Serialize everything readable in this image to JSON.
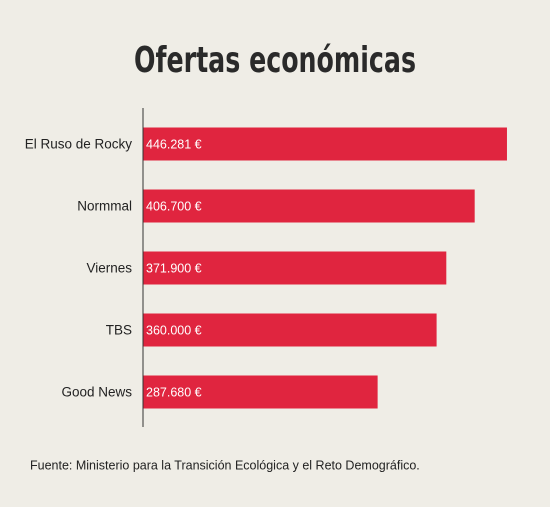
{
  "chart_data": {
    "type": "hbar",
    "title": "Ofertas económicas",
    "categories": [
      "El Ruso de Rocky",
      "Normmal",
      "Viernes",
      "TBS",
      "Good News"
    ],
    "values": [
      446281,
      406700,
      371900,
      360000,
      287680
    ],
    "value_labels": [
      "446.281 €",
      "406.700 €",
      "371.900 €",
      "360.000 €",
      "287.680 €"
    ],
    "color": "#e0253f",
    "xlim": [
      0,
      450000
    ],
    "source": "Fuente: Ministerio para la Transición Ecológica y el Reto Demográfico."
  }
}
